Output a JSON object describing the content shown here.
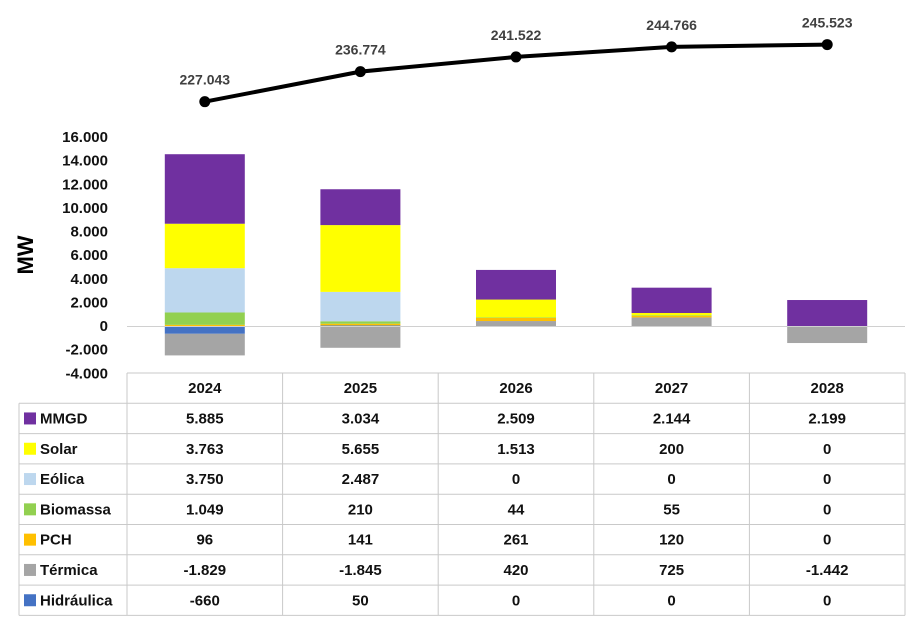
{
  "chart_data": {
    "type": "bar",
    "stacked": true,
    "categories": [
      "2024",
      "2025",
      "2026",
      "2027",
      "2028"
    ],
    "ylabel": "MW",
    "ylim": [
      -4000,
      16000
    ],
    "y_ticks": [
      "16.000",
      "14.000",
      "12.000",
      "10.000",
      "8.000",
      "6.000",
      "4.000",
      "2.000",
      "0",
      "-2.000",
      "-4.000"
    ],
    "y_tick_values": [
      16000,
      14000,
      12000,
      10000,
      8000,
      6000,
      4000,
      2000,
      0,
      -2000,
      -4000
    ],
    "grid": false,
    "series": [
      {
        "name": "MMGD",
        "color": "#7030A0",
        "values": [
          5885,
          3034,
          2509,
          2144,
          2199
        ],
        "labels": [
          "5.885",
          "3.034",
          "2.509",
          "2.144",
          "2.199"
        ]
      },
      {
        "name": "Solar",
        "color": "#FFFF00",
        "values": [
          3763,
          5655,
          1513,
          200,
          0
        ],
        "labels": [
          "3.763",
          "5.655",
          "1.513",
          "200",
          "0"
        ]
      },
      {
        "name": "Eólica",
        "color": "#BDD7EE",
        "values": [
          3750,
          2487,
          0,
          0,
          0
        ],
        "labels": [
          "3.750",
          "2.487",
          "0",
          "0",
          "0"
        ]
      },
      {
        "name": "Biomassa",
        "color": "#92D050",
        "values": [
          1049,
          210,
          44,
          55,
          0
        ],
        "labels": [
          "1.049",
          "210",
          "44",
          "55",
          "0"
        ]
      },
      {
        "name": "PCH",
        "color": "#FFC000",
        "values": [
          96,
          141,
          261,
          120,
          0
        ],
        "labels": [
          "96",
          "141",
          "261",
          "120",
          "0"
        ]
      },
      {
        "name": "Térmica",
        "color": "#A5A5A5",
        "values": [
          -1829,
          -1845,
          420,
          725,
          -1442
        ],
        "labels": [
          "-1.829",
          "-1.845",
          "420",
          "725",
          "-1.442"
        ]
      },
      {
        "name": "Hidráulica",
        "color": "#4472C4",
        "values": [
          -660,
          50,
          0,
          0,
          0
        ],
        "labels": [
          "-660",
          "50",
          "0",
          "0",
          "0"
        ]
      }
    ],
    "total_line": {
      "values": [
        227043,
        236774,
        241522,
        244766,
        245523
      ],
      "labels": [
        "227.043",
        "236.774",
        "241.522",
        "244.766",
        "245.523"
      ],
      "color": "#000000"
    }
  }
}
